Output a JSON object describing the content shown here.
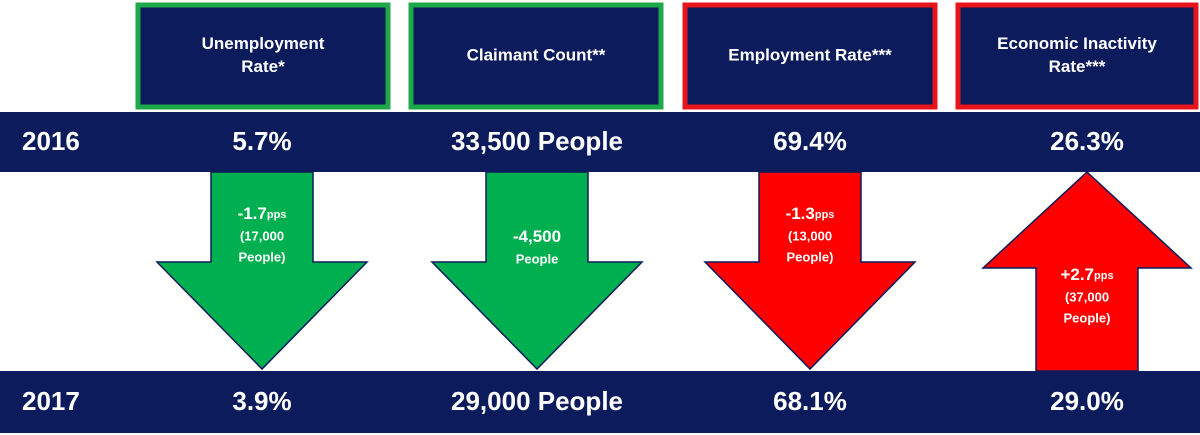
{
  "columns": [
    {
      "title_lines": [
        "Unemployment",
        "Rate*"
      ],
      "border_color": "#1fa84a",
      "arrow_color": "#00b050",
      "change": {
        "direction": "down",
        "main": "-1.7",
        "unit": "pps",
        "lines": [
          "(17,000",
          "People)"
        ]
      }
    },
    {
      "title_lines": [
        "Claimant Count**"
      ],
      "border_color": "#1fa84a",
      "arrow_color": "#00b050",
      "change": {
        "direction": "down",
        "main": "-4,500",
        "lines": [
          "People"
        ]
      }
    },
    {
      "title_lines": [
        "Employment Rate***"
      ],
      "border_color": "#e8141b",
      "arrow_color": "#ff0000",
      "change": {
        "direction": "down",
        "main": "-1.3",
        "unit": "pps",
        "lines": [
          "(13,000",
          "People)"
        ]
      }
    },
    {
      "title_lines": [
        "Economic Inactivity",
        "Rate***"
      ],
      "border_color": "#e8141b",
      "arrow_color": "#ff0000",
      "change": {
        "direction": "up",
        "main": "+2.7",
        "unit": "pps",
        "lines": [
          "(37,000",
          "People)"
        ]
      }
    }
  ],
  "rows": [
    {
      "year": "2016",
      "values": [
        "5.7%",
        "33,500 People",
        "69.4%",
        "26.3%"
      ]
    },
    {
      "year": "2017",
      "values": [
        "3.9%",
        "29,000 People",
        "68.1%",
        "29.0%"
      ]
    }
  ]
}
